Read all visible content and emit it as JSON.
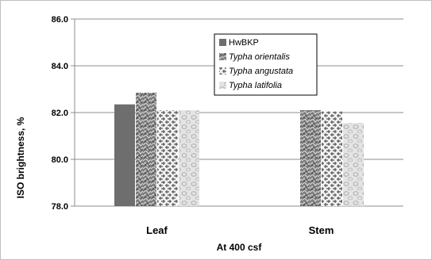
{
  "chart_data": {
    "type": "bar",
    "categories": [
      "Leaf",
      "Stem"
    ],
    "series": [
      {
        "name": "HwBKP",
        "values": [
          82.35,
          null
        ],
        "color": "#6e6e6e",
        "pattern": "solid"
      },
      {
        "name": "Typha orientalis",
        "values": [
          82.85,
          82.1
        ],
        "color": "#8c8c8c",
        "pattern": "crumple"
      },
      {
        "name": "Typha angustata",
        "values": [
          82.1,
          82.05
        ],
        "color": "#a8a8a8",
        "pattern": "weave"
      },
      {
        "name": "Typha latifolia",
        "values": [
          82.1,
          81.55
        ],
        "color": "#d4d4d4",
        "pattern": "droplets"
      }
    ],
    "ylabel": "ISO brightness, %",
    "xlabel": "At 400 csf",
    "ylim": [
      78.0,
      86.0
    ],
    "yticks": [
      "78.0",
      "80.0",
      "82.0",
      "84.0",
      "86.0"
    ],
    "grid": true,
    "legend_position": "top-center"
  }
}
